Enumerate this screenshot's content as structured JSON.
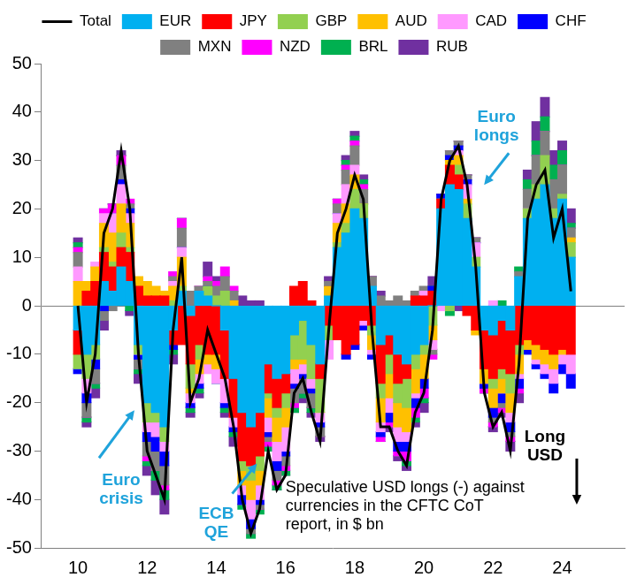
{
  "chart_data": {
    "type": "area",
    "stacked": true,
    "grid": false,
    "legend": "top",
    "x": [
      2010,
      2010.25,
      2010.5,
      2010.75,
      2011,
      2011.25,
      2011.5,
      2011.75,
      2012,
      2012.25,
      2012.5,
      2012.75,
      2013,
      2013.25,
      2013.5,
      2013.75,
      2014,
      2014.25,
      2014.5,
      2014.75,
      2015,
      2015.25,
      2015.5,
      2015.75,
      2016,
      2016.25,
      2016.5,
      2016.75,
      2017,
      2017.25,
      2017.5,
      2017.75,
      2018,
      2018.25,
      2018.5,
      2018.75,
      2019,
      2019.25,
      2019.5,
      2019.75,
      2020,
      2020.25,
      2020.5,
      2020.75,
      2021,
      2021.25,
      2021.5,
      2021.75,
      2022,
      2022.25,
      2022.5,
      2022.75,
      2023,
      2023.25,
      2023.5,
      2023.75,
      2024,
      2024.25
    ],
    "xlim": [
      2010,
      2024.75
    ],
    "xticks": [
      {
        "value": 2010,
        "label": "10"
      },
      {
        "value": 2012,
        "label": "12"
      },
      {
        "value": 2014,
        "label": "14"
      },
      {
        "value": 2016,
        "label": "16"
      },
      {
        "value": 2018,
        "label": "18"
      },
      {
        "value": 2020,
        "label": "20"
      },
      {
        "value": 2022,
        "label": "22"
      },
      {
        "value": 2024,
        "label": "24"
      }
    ],
    "ylim": [
      -50,
      50
    ],
    "yticks": [
      -50,
      -40,
      -30,
      -20,
      -10,
      0,
      10,
      20,
      30,
      40,
      50
    ],
    "series": [
      {
        "name": "EUR",
        "color": "#00B0F0",
        "values": [
          -5,
          -10,
          -8,
          5,
          3,
          8,
          5,
          -8,
          -20,
          -22,
          -25,
          -5,
          3,
          -2,
          3,
          2,
          0,
          -5,
          -15,
          -22,
          -25,
          -22,
          -12,
          -15,
          -14,
          -6,
          -3,
          -8,
          -12,
          2,
          12,
          15,
          20,
          18,
          4,
          -8,
          -6,
          -10,
          -12,
          -10,
          -8,
          0,
          20,
          25,
          24,
          18,
          8,
          -5,
          -6,
          -3,
          -5,
          6,
          18,
          22,
          25,
          18,
          22,
          10
        ]
      },
      {
        "name": "JPY",
        "color": "#FF0000",
        "values": [
          -5,
          3,
          5,
          6,
          5,
          4,
          6,
          4,
          2,
          2,
          2,
          -3,
          -8,
          -10,
          -8,
          -10,
          -10,
          -10,
          -8,
          -10,
          -8,
          -9,
          -6,
          -6,
          -4,
          4,
          5,
          1,
          -3,
          -4,
          -7,
          -10,
          -8,
          -3,
          -4,
          -8,
          -4,
          -6,
          -3,
          2,
          2,
          3,
          2,
          4,
          3,
          -2,
          -5,
          -8,
          -9,
          -10,
          -9,
          -8,
          -7,
          -8,
          -9,
          -10,
          -9,
          -10
        ]
      },
      {
        "name": "GBP",
        "color": "#92D050",
        "values": [
          -3,
          -5,
          -3,
          1,
          1,
          3,
          1,
          -2,
          -4,
          -2,
          -3,
          1,
          1,
          -5,
          -3,
          2,
          2,
          3,
          0,
          -2,
          -3,
          -3,
          -1,
          -2,
          -3,
          -5,
          -8,
          -7,
          -7,
          -3,
          1,
          2,
          4,
          3,
          -2,
          -3,
          -4,
          -4,
          -6,
          -3,
          -2,
          -4,
          0,
          -1,
          2,
          3,
          2,
          0,
          -2,
          -2,
          -4,
          -2,
          2,
          3,
          6,
          2,
          1,
          3
        ]
      },
      {
        "name": "AUD",
        "color": "#FFC000",
        "values": [
          5,
          2,
          3,
          5,
          6,
          6,
          5,
          2,
          3,
          2,
          1,
          3,
          6,
          -1,
          -3,
          -2,
          -3,
          0,
          1,
          -3,
          -4,
          -3,
          -4,
          -5,
          -4,
          -2,
          -1,
          0,
          0,
          2,
          4,
          4,
          3,
          0,
          -3,
          -5,
          -5,
          -5,
          -5,
          -5,
          -5,
          -3,
          0,
          1,
          2,
          1,
          -1,
          -3,
          -4,
          -3,
          -4,
          -4,
          -2,
          -3,
          -3,
          -3,
          -1,
          1
        ]
      },
      {
        "name": "CAD",
        "color": "#FF99FF",
        "values": [
          3,
          -3,
          1,
          2,
          4,
          4,
          2,
          0,
          -2,
          -3,
          -2,
          1,
          2,
          -2,
          -2,
          -2,
          -3,
          -5,
          -2,
          -2,
          -4,
          -3,
          -3,
          -4,
          -5,
          -3,
          -2,
          -2,
          -2,
          -4,
          2,
          4,
          2,
          -1,
          -1,
          -2,
          -3,
          -3,
          -2,
          -1,
          1,
          -2,
          -1,
          0,
          1,
          3,
          3,
          0,
          1,
          0,
          -2,
          -1,
          0,
          -1,
          -2,
          -3,
          -2,
          -4
        ]
      },
      {
        "name": "CHF",
        "color": "#0000FF",
        "values": [
          -1,
          -2,
          -2,
          -1,
          0,
          1,
          1,
          -1,
          -2,
          -3,
          -3,
          -1,
          0,
          -1,
          -1,
          0,
          0,
          -1,
          -1,
          -2,
          -2,
          -1,
          -1,
          -2,
          -1,
          -1,
          -1,
          -1,
          -1,
          0,
          0,
          -1,
          -1,
          -1,
          -1,
          -1,
          -2,
          -2,
          -2,
          -2,
          -2,
          1,
          1,
          1,
          1,
          1,
          0,
          -1,
          -2,
          -2,
          -2,
          -2,
          -1,
          -1,
          -1,
          -2,
          -2,
          -3
        ]
      },
      {
        "name": "MXN",
        "color": "#808080",
        "values": [
          3,
          -3,
          -3,
          -2,
          -1,
          3,
          1,
          -2,
          -3,
          -4,
          -4,
          1,
          4,
          3,
          1,
          1,
          2,
          3,
          2,
          0,
          -1,
          -1,
          -1,
          -2,
          -2,
          -3,
          -3,
          -3,
          -2,
          1,
          2,
          3,
          4,
          3,
          2,
          2,
          1,
          2,
          1,
          1,
          1,
          -1,
          0,
          1,
          1,
          1,
          1,
          0,
          -1,
          -1,
          -1,
          1,
          4,
          6,
          5,
          6,
          6,
          2
        ]
      },
      {
        "name": "NZD",
        "color": "#FF00FF",
        "values": [
          1,
          0,
          0,
          1,
          2,
          2,
          1,
          0,
          -1,
          0,
          -1,
          1,
          2,
          0,
          0,
          1,
          1,
          2,
          1,
          0,
          0,
          0,
          -1,
          -1,
          -1,
          -1,
          0,
          0,
          0,
          0,
          1,
          1,
          1,
          1,
          0,
          -1,
          -1,
          -1,
          -2,
          -2,
          -2,
          -1,
          0,
          0,
          0,
          0,
          0,
          -1,
          -1,
          -1,
          -1,
          -1,
          0,
          0,
          0,
          0,
          0,
          0
        ]
      },
      {
        "name": "BRL",
        "color": "#00B050",
        "values": [
          1,
          -1,
          -1,
          0,
          0,
          0,
          -1,
          -1,
          -1,
          -2,
          -2,
          -1,
          0,
          -1,
          -1,
          0,
          0,
          -1,
          -1,
          -1,
          -1,
          -1,
          -1,
          -1,
          -1,
          -1,
          -1,
          -1,
          0,
          0,
          0,
          1,
          1,
          1,
          0,
          0,
          0,
          0,
          -1,
          -1,
          -1,
          0,
          0,
          -1,
          0,
          0,
          0,
          0,
          0,
          1,
          0,
          1,
          2,
          3,
          3,
          3,
          3,
          1
        ]
      },
      {
        "name": "RUB",
        "color": "#7030A0",
        "values": [
          1,
          -1,
          -2,
          -2,
          0,
          1,
          -1,
          -2,
          -2,
          -3,
          -3,
          -2,
          0,
          -1,
          -1,
          3,
          1,
          -1,
          -2,
          2,
          1,
          1,
          0,
          0,
          0,
          0,
          -1,
          -1,
          -1,
          1,
          0,
          1,
          1,
          1,
          0,
          1,
          -1,
          -1,
          -1,
          -1,
          -2,
          2,
          0,
          0,
          -1,
          0,
          0,
          0,
          -1,
          -1,
          -2,
          -2,
          2,
          4,
          4,
          3,
          2,
          3
        ]
      },
      {
        "name": "Total",
        "color": "#000000",
        "type": "line",
        "values": [
          0,
          -20,
          -10,
          15,
          20,
          32,
          20,
          -10,
          -30,
          -35,
          -40,
          -5,
          10,
          -20,
          -15,
          -5,
          -10,
          -15,
          -25,
          -40,
          -47,
          -42,
          -30,
          -38,
          -35,
          -18,
          -15,
          -22,
          -28,
          -5,
          15,
          20,
          27,
          22,
          -5,
          -25,
          -25,
          -30,
          -33,
          -22,
          -18,
          -5,
          22,
          30,
          33,
          25,
          8,
          -18,
          -25,
          -22,
          -30,
          -12,
          18,
          25,
          28,
          14,
          20,
          3
        ]
      }
    ],
    "annotations": [
      {
        "text": "Euro\ncrisis",
        "x": 2011.25,
        "y": -38,
        "color": "#1FA3DB"
      },
      {
        "text": "ECB\nQE",
        "x": 2014.0,
        "y": -45,
        "color": "#1FA3DB"
      },
      {
        "text": "Euro\nlongs",
        "x": 2022.1,
        "y": 37,
        "color": "#1FA3DB"
      },
      {
        "text": "Long\nUSD",
        "x": 2023.5,
        "y": -29,
        "color": "#000000"
      }
    ],
    "note": {
      "text": "Speculative USD longs (-) against\ncurrencies in the CFTC CoT\nreport, in $ bn",
      "x": 2016.0,
      "y": -36
    }
  }
}
